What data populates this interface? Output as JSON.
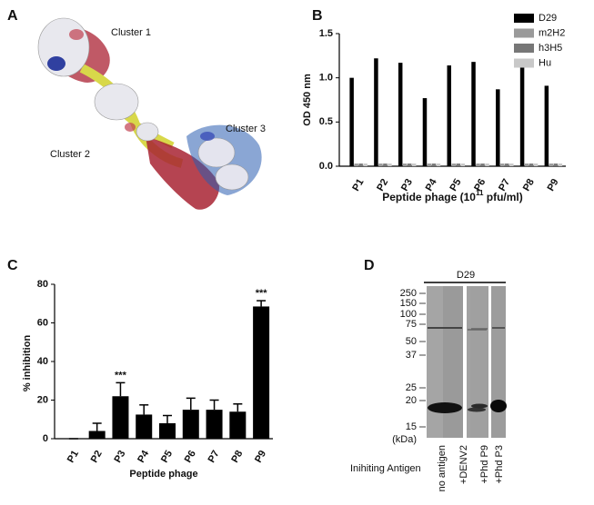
{
  "chart_data": [
    {
      "type": "bar",
      "panel_label": "B",
      "ylabel": "OD 450 nm",
      "xlabel": [
        "Peptide phage (10",
        "11",
        " pfu/ml)"
      ],
      "categories": [
        "P1",
        "P2",
        "P3",
        "P4",
        "P5",
        "P6",
        "P7",
        "P8",
        "P9"
      ],
      "series": [
        {
          "name": "D29",
          "color": "#000000",
          "values": [
            1.0,
            1.22,
            1.17,
            0.77,
            1.14,
            1.18,
            0.87,
            1.15,
            0.91
          ]
        },
        {
          "name": "m2H2",
          "color": "#9a9a9a",
          "values": [
            0.03,
            0.03,
            0.03,
            0.03,
            0.03,
            0.03,
            0.03,
            0.03,
            0.03
          ]
        },
        {
          "name": "h3H5",
          "color": "#777777",
          "values": [
            0.03,
            0.03,
            0.03,
            0.03,
            0.03,
            0.03,
            0.03,
            0.03,
            0.03
          ]
        },
        {
          "name": "Hu",
          "color": "#c8c8c8",
          "values": [
            0.03,
            0.03,
            0.03,
            0.03,
            0.03,
            0.03,
            0.03,
            0.03,
            0.03
          ]
        }
      ],
      "ylim": [
        0,
        1.5
      ],
      "yticks": [
        {
          "value": 0,
          "label": "0.0"
        },
        {
          "value": 0.5,
          "label": "0.5"
        },
        {
          "value": 1,
          "label": "1.0"
        },
        {
          "value": 1.5,
          "label": "1.5"
        }
      ],
      "legend": "top-right"
    },
    {
      "type": "errorbar",
      "panel_label": "C",
      "ylabel": "% inhibition",
      "xlabel": "Peptide phage",
      "categories": [
        "P1",
        "P2",
        "P3",
        "P4",
        "P5",
        "P6",
        "P7",
        "P8",
        "P9"
      ],
      "values": [
        0,
        4,
        22,
        12.5,
        8,
        15,
        15,
        14,
        68.5
      ],
      "errors": [
        0,
        4,
        7,
        5,
        4,
        6,
        5,
        4,
        3
      ],
      "color": "#000000",
      "ylim": [
        0,
        80
      ],
      "yticks": [
        0,
        20,
        40,
        60,
        80
      ],
      "annotations": [
        {
          "text": "***",
          "category": "P3"
        },
        {
          "text": "***",
          "category": "P9"
        }
      ]
    }
  ],
  "structure_panel": {
    "panel_label": "A",
    "labels": [
      "Cluster 1",
      "Cluster 2",
      "Cluster 3"
    ]
  },
  "blot_panel": {
    "panel_label": "D",
    "antibody": "D29",
    "markers": [
      "250",
      "150",
      "100",
      "75",
      "50",
      "37",
      "25",
      "20",
      "15"
    ],
    "unit": "(kDa)",
    "lanes": [
      "no antigen",
      "+DENV2",
      "+Phd P9",
      "+Phd P3"
    ],
    "lanes_title": "Inihiting Antigen"
  }
}
